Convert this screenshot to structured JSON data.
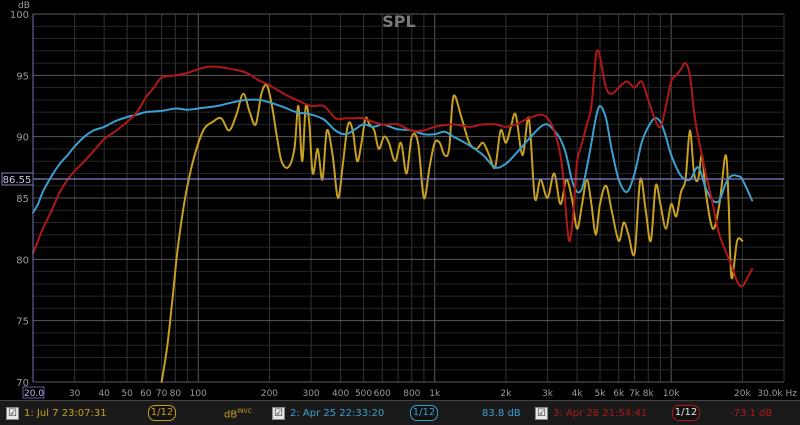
{
  "chart_data": {
    "type": "line",
    "title": "SPL",
    "ylabel": "dB",
    "xlabel": "Hz",
    "x_scale": "log",
    "xlim": [
      20,
      30000
    ],
    "ylim": [
      70,
      100
    ],
    "grid": true,
    "y_ticks": [
      "70",
      "75",
      "80",
      "85",
      "90",
      "95",
      "100"
    ],
    "x_ticks": [
      {
        "v": 20,
        "t": "20.0"
      },
      {
        "v": 30,
        "t": "30"
      },
      {
        "v": 40,
        "t": "40"
      },
      {
        "v": 50,
        "t": "50"
      },
      {
        "v": 60,
        "t": "60"
      },
      {
        "v": 70,
        "t": "70"
      },
      {
        "v": 80,
        "t": "80"
      },
      {
        "v": 100,
        "t": "100"
      },
      {
        "v": 200,
        "t": "200"
      },
      {
        "v": 300,
        "t": "300"
      },
      {
        "v": 400,
        "t": "400"
      },
      {
        "v": 500,
        "t": "500"
      },
      {
        "v": 600,
        "t": "600"
      },
      {
        "v": 800,
        "t": "800"
      },
      {
        "v": 1000,
        "t": "1k"
      },
      {
        "v": 2000,
        "t": "2k"
      },
      {
        "v": 3000,
        "t": "3k"
      },
      {
        "v": 4000,
        "t": "4k"
      },
      {
        "v": 5000,
        "t": "5k"
      },
      {
        "v": 6000,
        "t": "6k"
      },
      {
        "v": 7000,
        "t": "7k"
      },
      {
        "v": 8000,
        "t": "8k"
      },
      {
        "v": 10000,
        "t": "10k"
      },
      {
        "v": 20000,
        "t": "20k"
      },
      {
        "v": 30000,
        "t": "30.0k Hz"
      }
    ],
    "reference_line": {
      "y": 86.55,
      "label": "86.55"
    },
    "series": [
      {
        "color": "#c8a020",
        "x": [
          70,
          74,
          78,
          82,
          88,
          95,
          105,
          115,
          125,
          135,
          145,
          155,
          165,
          175,
          185,
          195,
          205,
          215,
          225,
          240,
          255,
          265,
          275,
          285,
          295,
          305,
          320,
          335,
          350,
          370,
          390,
          410,
          430,
          450,
          470,
          490,
          510,
          530,
          555,
          580,
          610,
          640,
          680,
          720,
          760,
          800,
          850,
          900,
          950,
          1000,
          1050,
          1100,
          1150,
          1200,
          1300,
          1400,
          1500,
          1600,
          1700,
          1800,
          1900,
          2000,
          2100,
          2200,
          2350,
          2500,
          2650,
          2800,
          3000,
          3200,
          3400,
          3600,
          3800,
          4000,
          4200,
          4400,
          4600,
          4800,
          5000,
          5300,
          5600,
          6000,
          6300,
          6600,
          7000,
          7400,
          7800,
          8200,
          8600,
          9000,
          9500,
          10000,
          10500,
          11000,
          11500,
          12000,
          12500,
          13000,
          13500,
          14000,
          15000,
          16000,
          17000,
          17500,
          18000,
          19000,
          20000
        ],
        "y": [
          70,
          73,
          77,
          81,
          85,
          88,
          90.5,
          91.2,
          91.5,
          90.5,
          91.8,
          93.5,
          92,
          91,
          93.5,
          94.2,
          92.5,
          90,
          88,
          87.5,
          89,
          92.5,
          88,
          92.5,
          91,
          87,
          89,
          86.5,
          90.5,
          88.5,
          85,
          88,
          91,
          90.5,
          88,
          89.5,
          91.5,
          91,
          90.5,
          89,
          90,
          89.5,
          88,
          89.5,
          87,
          90,
          89.5,
          85,
          87.5,
          89.5,
          89.5,
          88.5,
          89,
          93.3,
          91.5,
          89.5,
          89,
          89.5,
          88.5,
          87.5,
          90.5,
          89.5,
          90.8,
          91.8,
          88.5,
          91.5,
          85,
          86.5,
          85,
          87,
          84.5,
          86.5,
          85,
          82.5,
          84.5,
          86.5,
          84.5,
          82,
          84.5,
          86,
          84,
          81.5,
          83,
          82,
          80.5,
          86.5,
          84,
          81.5,
          86,
          84.5,
          82.5,
          84.5,
          83.5,
          85.5,
          86.5,
          90.5,
          87,
          86.5,
          88.5,
          85.5,
          82.5,
          84.5,
          88.5,
          84.5,
          78.5,
          81.5,
          81.5
        ]
      },
      {
        "color": "#3b9fd0",
        "x": [
          20,
          21,
          22,
          24,
          26,
          28,
          30,
          33,
          36,
          40,
          45,
          50,
          55,
          60,
          70,
          80,
          90,
          100,
          120,
          140,
          160,
          180,
          200,
          230,
          260,
          300,
          340,
          380,
          420,
          460,
          500,
          550,
          600,
          650,
          700,
          800,
          900,
          1000,
          1100,
          1200,
          1400,
          1600,
          1800,
          2000,
          2200,
          2500,
          2800,
          3000,
          3200,
          3400,
          3600,
          3800,
          4000,
          4200,
          4400,
          4600,
          4800,
          5000,
          5300,
          5600,
          6000,
          6500,
          7000,
          7500,
          8000,
          8500,
          9000,
          9500,
          10000,
          11000,
          12000,
          13000,
          14000,
          15000,
          16000,
          17000,
          18000,
          19000,
          20000,
          22000
        ],
        "y": [
          83.8,
          84.5,
          85.5,
          86.8,
          87.8,
          88.5,
          89.2,
          90,
          90.5,
          90.8,
          91.3,
          91.6,
          91.8,
          92,
          92.1,
          92.3,
          92.2,
          92.3,
          92.5,
          92.8,
          93,
          93,
          92.8,
          92.4,
          92,
          91.8,
          91.4,
          90.5,
          90.2,
          90.6,
          91,
          90.8,
          91,
          90.8,
          90.6,
          90.5,
          90.2,
          90.2,
          90.4,
          90,
          89.3,
          88.5,
          87.5,
          87.8,
          88.6,
          89.8,
          90.8,
          91,
          90.5,
          89.8,
          88.5,
          86.5,
          85.5,
          85.8,
          87.5,
          89.5,
          91.5,
          92.5,
          91.5,
          89,
          86.5,
          85.5,
          87,
          89.5,
          90.8,
          91.5,
          91.2,
          90,
          88.5,
          86.8,
          86.5,
          87.5,
          85.8,
          84.8,
          84.8,
          86.2,
          86.8,
          86.8,
          86.5,
          84.8
        ]
      },
      {
        "color": "#b01818",
        "x": [
          20,
          21,
          22,
          24,
          26,
          28,
          30,
          33,
          36,
          40,
          45,
          50,
          55,
          60,
          65,
          70,
          80,
          90,
          100,
          110,
          120,
          140,
          160,
          180,
          200,
          230,
          260,
          300,
          340,
          380,
          420,
          460,
          500,
          550,
          600,
          650,
          700,
          800,
          900,
          1000,
          1200,
          1400,
          1600,
          1800,
          2000,
          2200,
          2500,
          2800,
          3000,
          3200,
          3400,
          3500,
          3600,
          3700,
          3800,
          3900,
          4000,
          4200,
          4400,
          4600,
          4800,
          4900,
          5000,
          5300,
          5600,
          6000,
          6500,
          7000,
          7500,
          8000,
          8500,
          9000,
          9500,
          10000,
          10500,
          11000,
          11500,
          12000,
          12500,
          13000,
          14000,
          15000,
          16000,
          18000,
          19000,
          20000,
          21000,
          22000
        ],
        "y": [
          80.5,
          81.5,
          82.5,
          84,
          85.5,
          86.5,
          87.2,
          88,
          88.8,
          89.8,
          90.5,
          91.2,
          92,
          93.2,
          94,
          94.8,
          95,
          95.2,
          95.5,
          95.7,
          95.7,
          95.5,
          95.2,
          94.6,
          94.2,
          93.5,
          93,
          92.5,
          92.5,
          91.5,
          91.5,
          91.5,
          91.5,
          91.2,
          91,
          91,
          91,
          90.5,
          90.5,
          90.8,
          91,
          90.8,
          91,
          91,
          90.8,
          91,
          91.5,
          91.8,
          91.5,
          90.5,
          88.5,
          86.5,
          83.5,
          81.5,
          82.5,
          85,
          88,
          89.5,
          91,
          92.5,
          96.5,
          97,
          96.5,
          94,
          93.5,
          94,
          94.5,
          94,
          94.5,
          93,
          91.5,
          90.8,
          92.5,
          94.5,
          95,
          95.5,
          96,
          95,
          92,
          90,
          87,
          84.5,
          82,
          79.5,
          78.2,
          77.8,
          78.5,
          79.2
        ]
      }
    ]
  },
  "legend": [
    {
      "checkbox": "☑",
      "label": "1: Jul 7 23:07:31",
      "smoothing": "1/12",
      "value": "dB",
      "value_sup": "INVC",
      "color": "#c8a020"
    },
    {
      "checkbox": "☑",
      "label": "2: Apr 25 22:33:20",
      "smoothing": "1/12",
      "value": "83.8 dB",
      "value_sup": "",
      "color": "#3b9fd0"
    },
    {
      "checkbox": "☑",
      "label": "3: Apr 28 21:54:41",
      "smoothing": "1/12",
      "value": "-73.1 dB",
      "value_sup": "",
      "color": "#b01818"
    }
  ]
}
